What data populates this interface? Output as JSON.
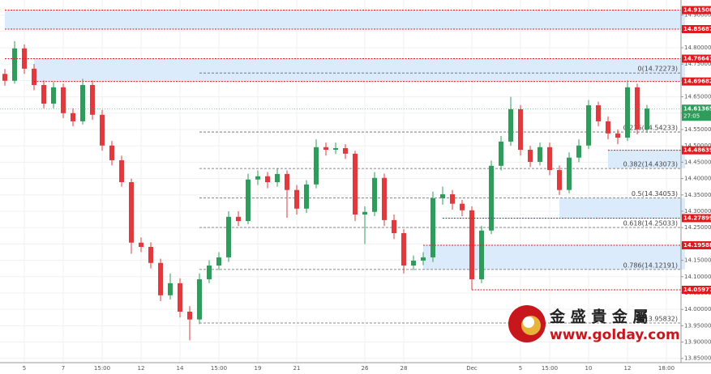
{
  "chart_data": {
    "type": "candlestick",
    "categories": [
      null,
      null,
      "5",
      null,
      null,
      null,
      "7",
      null,
      null,
      null,
      "15:00",
      null,
      null,
      null,
      "12",
      null,
      null,
      null,
      "14",
      null,
      null,
      null,
      "15:00",
      null,
      null,
      null,
      "19",
      null,
      null,
      null,
      "21",
      null,
      null,
      null,
      null,
      null,
      null,
      "26",
      null,
      null,
      null,
      "28",
      null,
      null,
      null,
      null,
      null,
      null,
      "Dec",
      null,
      null,
      null,
      null,
      "5",
      null,
      null,
      "15:00",
      null,
      null,
      null,
      "10",
      null,
      null,
      null,
      "12",
      null,
      null,
      null,
      "18:00"
    ],
    "opens": [
      14.72,
      14.699,
      14.798,
      14.736,
      14.686,
      14.629,
      14.679,
      14.6,
      14.575,
      14.686,
      14.595,
      14.501,
      14.456,
      14.389,
      14.204,
      14.191,
      14.142,
      14.043,
      14.08,
      13.993,
      13.969,
      14.092,
      14.134,
      14.159,
      14.283,
      14.27,
      14.397,
      14.407,
      14.389,
      14.414,
      14.365,
      14.308,
      14.382,
      14.496,
      14.488,
      14.493,
      14.476,
      14.29,
      14.298,
      14.402,
      14.273,
      14.233,
      14.134,
      14.149,
      14.159,
      14.34,
      14.352,
      14.323,
      14.303,
      14.092,
      14.241,
      14.439,
      14.513,
      14.612,
      14.488,
      14.451,
      14.496,
      14.426,
      14.365,
      14.464,
      14.501,
      14.624,
      14.575,
      14.538,
      14.525,
      14.679,
      14.55,
      null,
      null
    ],
    "highs": [
      14.735,
      14.82,
      14.81,
      14.75,
      14.7,
      14.695,
      14.69,
      14.615,
      14.705,
      14.7,
      14.61,
      14.515,
      14.47,
      14.4,
      14.22,
      14.205,
      14.155,
      14.11,
      14.095,
      14.01,
      14.11,
      14.15,
      14.175,
      14.3,
      14.3,
      14.415,
      14.425,
      14.42,
      14.43,
      14.425,
      14.38,
      14.395,
      14.52,
      14.51,
      14.51,
      14.505,
      14.485,
      14.315,
      14.42,
      14.415,
      14.29,
      14.245,
      14.165,
      14.175,
      14.36,
      14.375,
      14.365,
      14.335,
      14.315,
      14.255,
      14.455,
      14.53,
      14.65,
      14.625,
      14.5,
      14.51,
      14.51,
      14.44,
      14.48,
      14.52,
      14.64,
      14.635,
      14.59,
      14.55,
      14.7,
      14.69,
      14.625,
      null,
      null
    ],
    "lows": [
      14.684,
      14.69,
      14.72,
      14.67,
      14.615,
      14.615,
      14.585,
      14.56,
      14.565,
      14.58,
      14.485,
      14.44,
      14.375,
      14.17,
      14.175,
      14.125,
      14.025,
      14.03,
      13.975,
      13.905,
      13.955,
      14.08,
      14.12,
      14.145,
      14.255,
      14.26,
      14.38,
      14.37,
      14.375,
      14.28,
      14.29,
      14.295,
      14.37,
      14.47,
      14.475,
      14.46,
      14.27,
      14.2,
      14.285,
      14.255,
      14.215,
      14.11,
      14.12,
      14.135,
      14.145,
      14.32,
      14.305,
      14.285,
      14.06,
      14.08,
      14.23,
      14.425,
      14.5,
      14.47,
      14.435,
      14.44,
      14.41,
      14.35,
      14.355,
      14.45,
      14.49,
      14.56,
      14.52,
      14.505,
      14.515,
      14.535,
      14.54,
      null,
      null
    ],
    "closes": [
      14.699,
      14.798,
      14.736,
      14.686,
      14.629,
      14.679,
      14.6,
      14.575,
      14.686,
      14.595,
      14.501,
      14.456,
      14.389,
      14.204,
      14.191,
      14.142,
      14.043,
      14.08,
      13.993,
      13.969,
      14.092,
      14.134,
      14.159,
      14.283,
      14.27,
      14.397,
      14.407,
      14.389,
      14.414,
      14.365,
      14.308,
      14.382,
      14.496,
      14.488,
      14.493,
      14.476,
      14.29,
      14.298,
      14.402,
      14.273,
      14.233,
      14.134,
      14.149,
      14.159,
      14.34,
      14.352,
      14.323,
      14.303,
      14.092,
      14.241,
      14.439,
      14.513,
      14.612,
      14.488,
      14.451,
      14.496,
      14.426,
      14.365,
      14.464,
      14.501,
      14.624,
      14.575,
      14.538,
      14.525,
      14.679,
      14.55,
      14.614,
      null,
      null
    ],
    "up_color": "#2e9d5c",
    "down_color": "#e0393e",
    "ylim": [
      13.837,
      14.946
    ],
    "yticks": [
      {
        "value": 13.85,
        "label": "13.85000"
      },
      {
        "value": 13.9,
        "label": "13.90000"
      },
      {
        "value": 13.95,
        "label": "13.95000"
      },
      {
        "value": 14.0,
        "label": "14.00000"
      },
      {
        "value": 14.05,
        "label": "14.05000"
      },
      {
        "value": 14.1,
        "label": "14.10000"
      },
      {
        "value": 14.15,
        "label": "14.15000"
      },
      {
        "value": 14.2,
        "label": "14.20000"
      },
      {
        "value": 14.25,
        "label": "14.25000"
      },
      {
        "value": 14.3,
        "label": "14.30000"
      },
      {
        "value": 14.35,
        "label": "14.35000"
      },
      {
        "value": 14.4,
        "label": "14.40000"
      },
      {
        "value": 14.45,
        "label": "14.45000"
      },
      {
        "value": 14.5,
        "label": "14.50000"
      },
      {
        "value": 14.55,
        "label": "14.55000"
      },
      {
        "value": 14.6,
        "label": "14.60000"
      },
      {
        "value": 14.65,
        "label": "14.65000"
      },
      {
        "value": 14.7,
        "label": "14.70000"
      },
      {
        "value": 14.75,
        "label": "14.75000"
      },
      {
        "value": 14.8,
        "label": "14.80000"
      },
      {
        "value": 14.85,
        "label": "14.85000"
      },
      {
        "value": 14.9,
        "label": "14.90000"
      }
    ],
    "grid": true,
    "zones": [
      {
        "start": 0,
        "low": 14.85687,
        "high": 14.91508
      },
      {
        "start": 3,
        "low": 14.69682,
        "high": 14.76647
      },
      {
        "start": 62,
        "low": 14.43073,
        "high": 14.48639
      },
      {
        "start": 57,
        "low": 14.27899,
        "high": 14.34053
      },
      {
        "start": 43,
        "low": 14.12191,
        "high": 14.19588
      }
    ],
    "zone_color": "#dcebfb",
    "levels": [
      {
        "price": 14.91508,
        "start": 0
      },
      {
        "price": 14.85687,
        "start": 0
      },
      {
        "price": 14.76647,
        "start": 0
      },
      {
        "price": 14.69682,
        "start": 3
      },
      {
        "price": 14.48639,
        "start": 62
      },
      {
        "price": 14.27899,
        "start": 45
      },
      {
        "price": 14.19588,
        "start": 43
      },
      {
        "price": 14.05977,
        "start": 48
      }
    ],
    "level_color": "#e0191f",
    "fibonacci": {
      "start": 20,
      "levels": [
        {
          "value": 14.72273,
          "label": "0(14.72273)"
        },
        {
          "value": 14.54233,
          "label": "0.236(14.54233)"
        },
        {
          "value": 14.43073,
          "label": "0.382(14.43073)"
        },
        {
          "value": 14.34053,
          "label": "0.5(14.34053)"
        },
        {
          "value": 14.25033,
          "label": "0.618(14.25033)"
        },
        {
          "value": 14.12191,
          "label": "0.786(14.12191)"
        },
        {
          "value": 13.95832,
          "label": "1(13.95832)"
        }
      ]
    },
    "last_price": 14.61365,
    "countdown": "27:05",
    "last_color": "#2e9d5c"
  },
  "watermark": {
    "title": "金 盛 貴 金 屬",
    "url": "www.golday.com"
  }
}
